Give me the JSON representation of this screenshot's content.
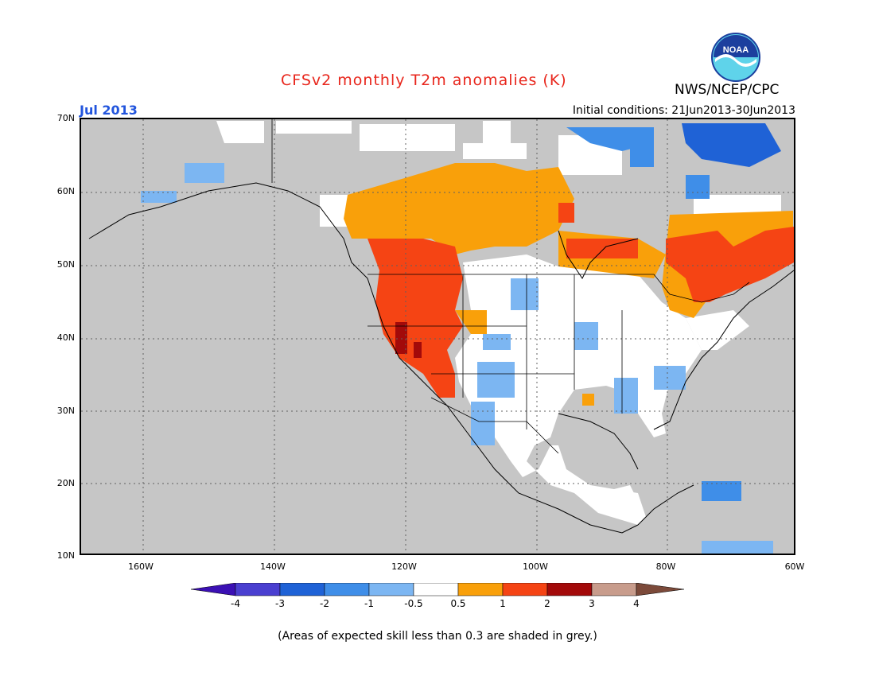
{
  "header": {
    "title": "CFSv2 monthly T2m anomalies (K)",
    "org": "NWS/NCEP/CPC",
    "month": "Jul 2013",
    "initial_conditions": "Initial conditions: 21Jun2013-30Jun2013",
    "logo_text": "NOAA"
  },
  "axes": {
    "lat_labels": [
      "70N",
      "60N",
      "50N",
      "40N",
      "30N",
      "20N",
      "10N"
    ],
    "lon_labels": [
      "160W",
      "140W",
      "120W",
      "100W",
      "80W",
      "60W"
    ]
  },
  "colorbar": {
    "labels": [
      "-4",
      "-3",
      "-2",
      "-1",
      "-0.5",
      "0.5",
      "1",
      "2",
      "3",
      "4"
    ],
    "colors": [
      "#3b10b4",
      "#4a3fd0",
      "#1f62d6",
      "#3f8ee8",
      "#7cb6f2",
      "#ffffff",
      "#f9a00a",
      "#f54414",
      "#a30a0a",
      "#c89c8c",
      "#7c4a3a"
    ]
  },
  "note": "(Areas of expected skill less than 0.3 are shaded in grey.)",
  "colors": {
    "no_skill_grey": "#c6c6c6",
    "title_red": "#e8261c",
    "month_blue": "#2255dd"
  }
}
